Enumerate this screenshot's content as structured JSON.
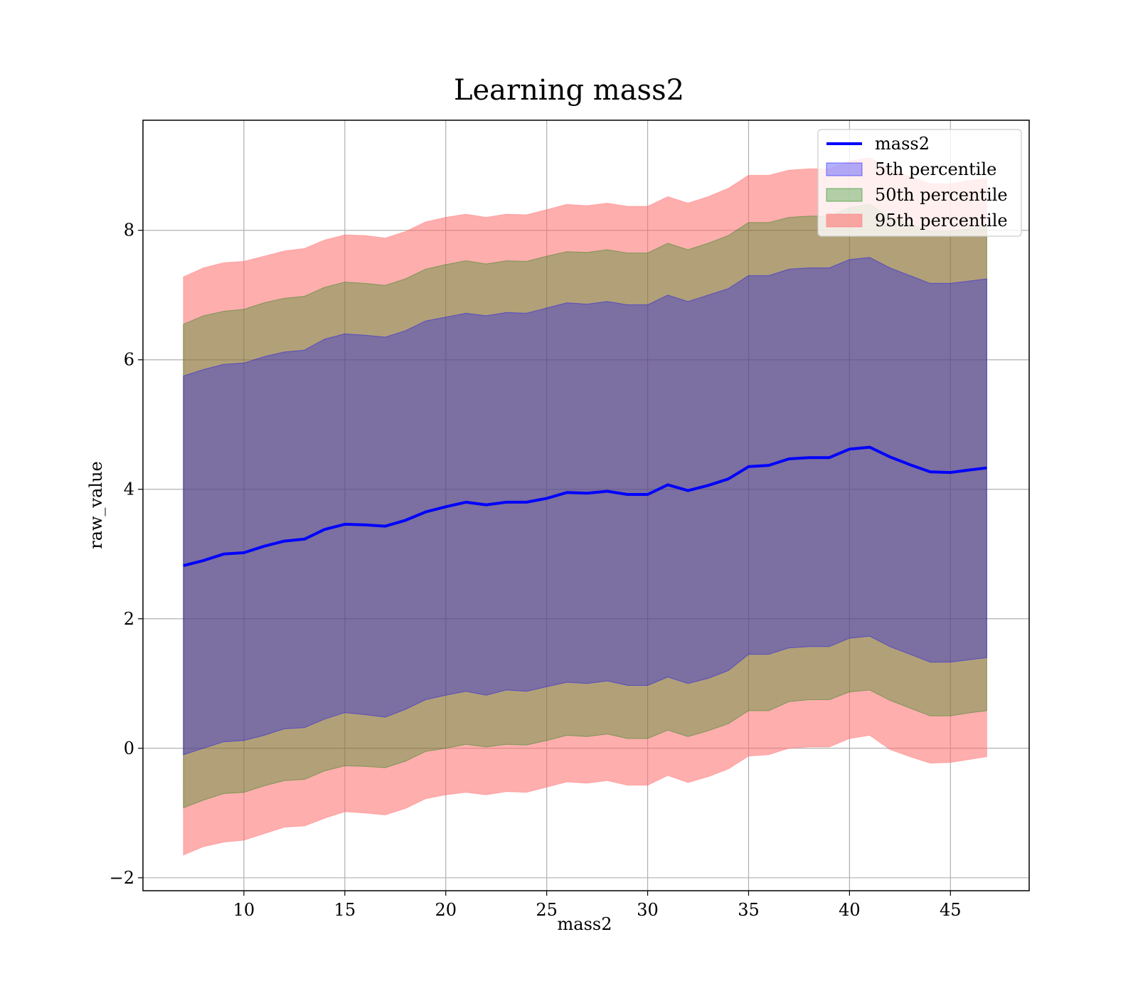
{
  "chart_data": {
    "type": "area",
    "title": "Learning mass2",
    "xlabel": "mass2",
    "ylabel": "raw_value",
    "xlim": [
      5,
      48.9
    ],
    "ylim": [
      -2.2,
      9.7
    ],
    "xticks": [
      10,
      15,
      20,
      25,
      30,
      35,
      40,
      45
    ],
    "yticks": [
      -2,
      0,
      2,
      4,
      6,
      8
    ],
    "xtick_labels": [
      "10",
      "15",
      "20",
      "25",
      "30",
      "35",
      "40",
      "45"
    ],
    "ytick_labels": [
      "−2",
      "0",
      "2",
      "4",
      "6",
      "8"
    ],
    "grid": true,
    "legend_position": "top-right",
    "legend": [
      "mass2",
      "5th percentile",
      "50th percentile",
      "95th percentile"
    ],
    "colors": {
      "line": "#0000ff",
      "band_5th": "#0000ff",
      "band_50th": "#008000",
      "band_95th": "#ff6b6b",
      "grid": "#b0b0b0"
    },
    "x": [
      7.0,
      8.0,
      9.0,
      10.0,
      11.0,
      12.0,
      13.0,
      14.0,
      15.0,
      16.0,
      17.0,
      18.0,
      19.0,
      20.0,
      21.0,
      22.0,
      23.0,
      24.0,
      25.0,
      26.0,
      27.0,
      28.0,
      29.0,
      30.0,
      31.0,
      32.0,
      33.0,
      34.0,
      35.0,
      36.0,
      37.0,
      38.0,
      39.0,
      40.0,
      41.0,
      42.0,
      43.0,
      44.0,
      45.0,
      46.0,
      46.8
    ],
    "series": [
      {
        "name": "mass2",
        "values": [
          2.82,
          2.9,
          3.0,
          3.02,
          3.12,
          3.2,
          3.23,
          3.38,
          3.46,
          3.45,
          3.43,
          3.52,
          3.65,
          3.73,
          3.8,
          3.76,
          3.8,
          3.8,
          3.86,
          3.95,
          3.94,
          3.97,
          3.92,
          3.92,
          4.07,
          3.98,
          4.06,
          4.16,
          4.35,
          4.37,
          4.47,
          4.49,
          4.49,
          4.62,
          4.65,
          4.5,
          4.38,
          4.27,
          4.26,
          4.3,
          4.33
        ]
      }
    ],
    "bands": [
      {
        "name": "5th percentile",
        "lower": [
          -0.1,
          0.0,
          0.1,
          0.12,
          0.2,
          0.3,
          0.32,
          0.45,
          0.55,
          0.52,
          0.48,
          0.6,
          0.75,
          0.82,
          0.88,
          0.82,
          0.9,
          0.88,
          0.95,
          1.02,
          1.0,
          1.04,
          0.97,
          0.97,
          1.1,
          1.0,
          1.08,
          1.2,
          1.45,
          1.45,
          1.55,
          1.57,
          1.57,
          1.7,
          1.73,
          1.57,
          1.45,
          1.33,
          1.33,
          1.37,
          1.4
        ],
        "upper": [
          5.75,
          5.85,
          5.93,
          5.95,
          6.05,
          6.12,
          6.15,
          6.32,
          6.4,
          6.38,
          6.35,
          6.45,
          6.6,
          6.66,
          6.72,
          6.68,
          6.73,
          6.72,
          6.8,
          6.88,
          6.86,
          6.9,
          6.85,
          6.85,
          7.0,
          6.9,
          7.0,
          7.1,
          7.3,
          7.3,
          7.4,
          7.42,
          7.42,
          7.55,
          7.58,
          7.42,
          7.3,
          7.18,
          7.18,
          7.22,
          7.25
        ]
      },
      {
        "name": "50th percentile",
        "lower": [
          -0.92,
          -0.8,
          -0.7,
          -0.68,
          -0.58,
          -0.5,
          -0.48,
          -0.35,
          -0.27,
          -0.28,
          -0.3,
          -0.2,
          -0.05,
          0.0,
          0.06,
          0.02,
          0.06,
          0.05,
          0.12,
          0.2,
          0.18,
          0.22,
          0.15,
          0.15,
          0.28,
          0.18,
          0.27,
          0.38,
          0.58,
          0.58,
          0.72,
          0.75,
          0.75,
          0.87,
          0.9,
          0.74,
          0.62,
          0.5,
          0.5,
          0.55,
          0.58
        ],
        "upper": [
          6.55,
          6.68,
          6.75,
          6.78,
          6.88,
          6.95,
          6.98,
          7.12,
          7.2,
          7.18,
          7.15,
          7.25,
          7.4,
          7.47,
          7.53,
          7.48,
          7.53,
          7.52,
          7.6,
          7.67,
          7.66,
          7.7,
          7.65,
          7.65,
          7.8,
          7.7,
          7.8,
          7.92,
          8.12,
          8.12,
          8.2,
          8.22,
          8.22,
          8.35,
          8.4,
          8.2,
          8.1,
          7.98,
          7.98,
          8.03,
          8.07
        ]
      },
      {
        "name": "95th percentile",
        "lower": [
          -1.65,
          -1.52,
          -1.45,
          -1.42,
          -1.32,
          -1.22,
          -1.2,
          -1.08,
          -0.98,
          -1.0,
          -1.03,
          -0.93,
          -0.78,
          -0.72,
          -0.68,
          -0.72,
          -0.67,
          -0.68,
          -0.6,
          -0.52,
          -0.54,
          -0.5,
          -0.57,
          -0.57,
          -0.42,
          -0.53,
          -0.44,
          -0.32,
          -0.12,
          -0.1,
          0.0,
          0.02,
          0.02,
          0.15,
          0.2,
          -0.02,
          -0.13,
          -0.23,
          -0.22,
          -0.17,
          -0.13
        ],
        "upper": [
          7.28,
          7.42,
          7.5,
          7.52,
          7.6,
          7.68,
          7.72,
          7.85,
          7.93,
          7.92,
          7.88,
          7.98,
          8.13,
          8.2,
          8.25,
          8.2,
          8.25,
          8.24,
          8.32,
          8.4,
          8.38,
          8.42,
          8.37,
          8.37,
          8.52,
          8.42,
          8.52,
          8.65,
          8.85,
          8.85,
          8.93,
          8.95,
          8.95,
          9.07,
          9.12,
          8.95,
          8.83,
          8.72,
          8.72,
          8.77,
          8.8
        ]
      }
    ]
  }
}
